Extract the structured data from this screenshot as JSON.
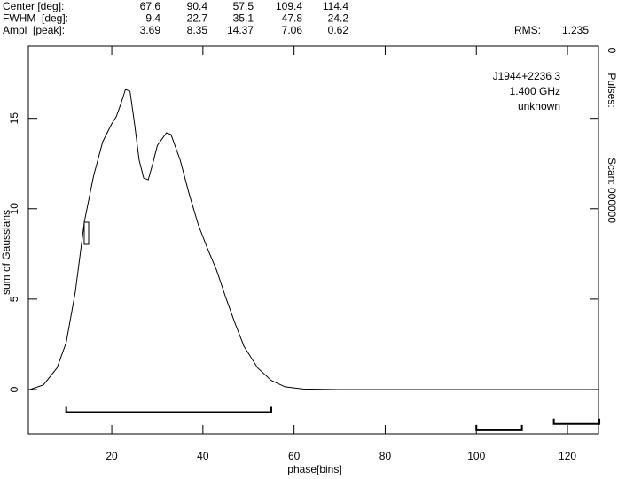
{
  "chart_data": {
    "type": "line",
    "header": {
      "rows": [
        {
          "label": "Center [deg]:",
          "values": [
            67.6,
            90.4,
            57.5,
            109.4,
            114.4
          ]
        },
        {
          "label": "FWHM  [deg]:",
          "values": [
            9.4,
            22.7,
            35.1,
            47.8,
            24.2
          ]
        },
        {
          "label": "Ampl  [peak]:",
          "values": [
            3.69,
            8.35,
            14.37,
            7.06,
            0.62
          ]
        }
      ],
      "rms_label": "RMS:",
      "rms": 1.235
    },
    "side_labels": [
      "0",
      "Pulses:",
      "Scan: 000000"
    ],
    "annotations": [
      "J1944+2236 3",
      "1.400 GHz",
      "unknown"
    ],
    "x_label": "phase[bins]",
    "y_label": "sum of Gaussians",
    "x": [
      2,
      5,
      8,
      10,
      12,
      14,
      16,
      18,
      20,
      21,
      22,
      23,
      24,
      25,
      26,
      27,
      28,
      29,
      30,
      32,
      33,
      35,
      37,
      39,
      41,
      43,
      45,
      47,
      49,
      52,
      55,
      58,
      62,
      70,
      127
    ],
    "values": [
      0.0,
      0.25,
      1.2,
      2.6,
      5.4,
      9.3,
      11.8,
      13.7,
      14.7,
      15.1,
      15.8,
      16.6,
      16.5,
      14.7,
      12.7,
      11.7,
      11.6,
      12.5,
      13.5,
      14.2,
      14.1,
      12.7,
      10.8,
      9.1,
      7.8,
      6.6,
      5.1,
      3.7,
      2.4,
      1.2,
      0.5,
      0.15,
      0.03,
      0,
      0
    ],
    "color": "#000000",
    "windows": [
      {
        "start": 10,
        "end": 55,
        "level": -1.25
      },
      {
        "start": 100,
        "end": 110,
        "level": -2.25
      },
      {
        "start": 117,
        "end": 127,
        "level": -1.9
      }
    ],
    "xlim": [
      1.7,
      126.8
    ],
    "ylim": [
      -2.45,
      19
    ],
    "xticks": [
      20,
      40,
      60,
      80,
      100,
      120
    ],
    "yticks": [
      0,
      5,
      10,
      15
    ]
  }
}
